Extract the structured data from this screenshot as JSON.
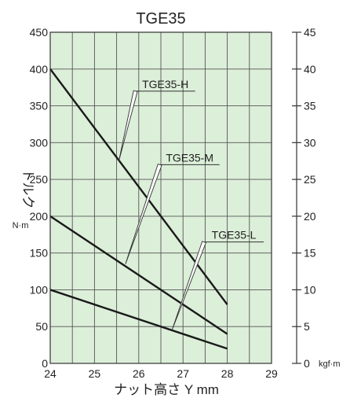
{
  "chart_data": {
    "type": "line",
    "title": "TGE35",
    "xlabel": "ナット高さ Y mm",
    "ylabel": "トルク",
    "ylabel_unit": "N·m",
    "y2_unit": "kgf·m",
    "xlim": [
      24,
      29
    ],
    "ylim": [
      0,
      450
    ],
    "y2lim": [
      0,
      45
    ],
    "x_ticks": [
      24,
      25,
      26,
      27,
      28,
      29
    ],
    "y_ticks": [
      0,
      50,
      100,
      150,
      200,
      250,
      300,
      350,
      400,
      450
    ],
    "y2_ticks": [
      0,
      5,
      10,
      15,
      20,
      25,
      30,
      35,
      40,
      45
    ],
    "grid": true,
    "background": "#dcefd9",
    "line_color": "#1a1a1a",
    "series": [
      {
        "name": "TGE35-H",
        "x": [
          24,
          28
        ],
        "y": [
          400,
          80
        ],
        "label_at": [
          26.6,
          370
        ],
        "leader_to": [
          25.55,
          275
        ]
      },
      {
        "name": "TGE35-M",
        "x": [
          24,
          28
        ],
        "y": [
          200,
          40
        ],
        "label_at": [
          27.15,
          270
        ],
        "leader_to": [
          25.7,
          135
        ]
      },
      {
        "name": "TGE35-L",
        "x": [
          24,
          28
        ],
        "y": [
          100,
          20
        ],
        "label_at": [
          28.15,
          165
        ],
        "leader_to": [
          26.75,
          45
        ]
      }
    ]
  }
}
